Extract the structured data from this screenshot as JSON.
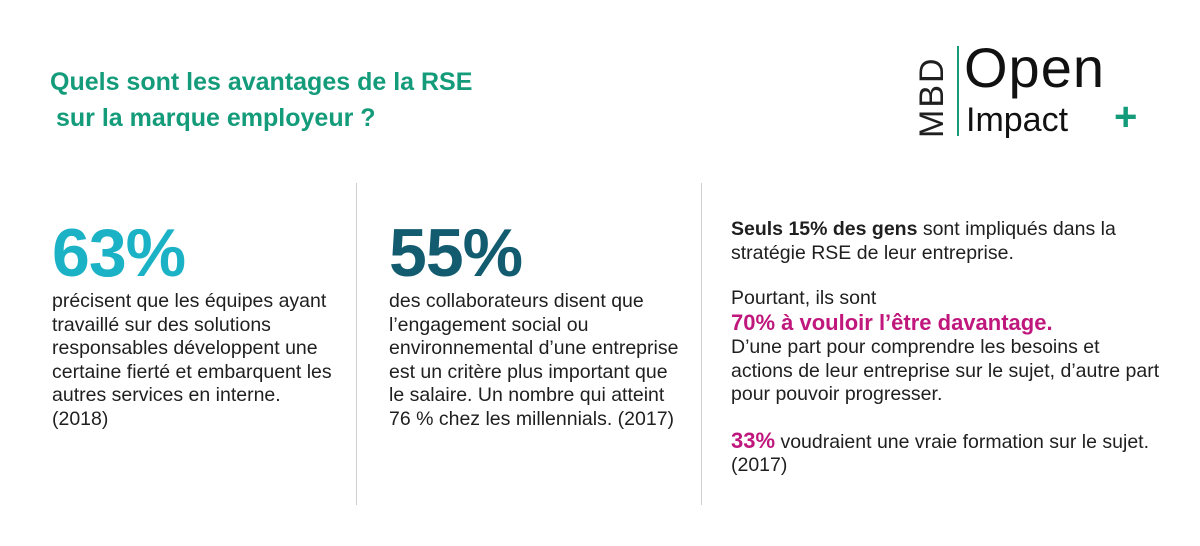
{
  "title": {
    "line1": "Quels sont les avantages de la RSE",
    "line2": "sur la marque employeur ?"
  },
  "logo": {
    "mbd": "MBD",
    "open": "Open",
    "impact": "Impact",
    "plus": "+"
  },
  "col1": {
    "stat": "63%",
    "text": "précisent que les équipes ayant travaillé sur des solutions responsables développent une certaine fierté et embarquent les autres services en interne. (2018)"
  },
  "col2": {
    "stat": "55%",
    "text": "des collaborateurs disent que l’engagement social ou environnemental d’une entreprise est un critère plus important que le salaire. Un nombre qui atteint 76 % chez les millennials. (2017)"
  },
  "col3": {
    "p1_strong": "Seuls 15% des gens",
    "p1_rest": " sont impliqués dans la stratégie RSE de leur entreprise.",
    "p2_intro": "Pourtant, ils sont",
    "p2_highlight": "70% à vouloir l’être davantage.",
    "p2_rest": "D’une part pour comprendre les besoins et actions de leur entreprise sur le sujet, d’autre part pour pouvoir progresser.",
    "p3_highlight": "33%",
    "p3_rest": " voudraient une vraie formation sur le sujet. (2017)"
  },
  "colors": {
    "title": "#139b7a",
    "stat1": "#1bb2c6",
    "stat2": "#135c70",
    "highlight": "#c0177d"
  }
}
